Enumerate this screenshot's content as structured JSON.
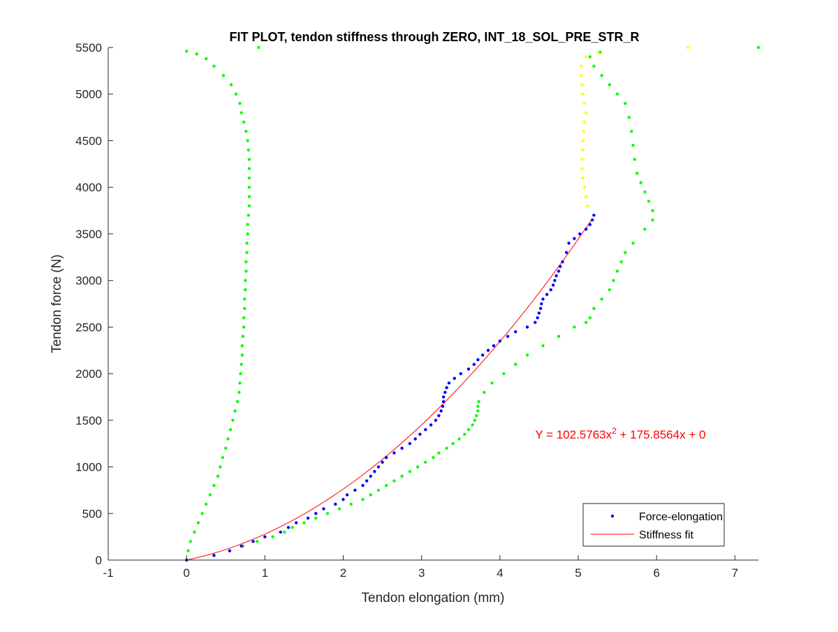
{
  "colors": {
    "force_elongation": "#0000ff",
    "stiffness_fit": "#ff0000",
    "green_series": "#00ff00",
    "yellow_series": "#ffff00",
    "equation": "#ff0000"
  },
  "chart_data": {
    "type": "scatter",
    "title": "FIT PLOT, tendon stiffness through ZERO, INT_18_SOL_PRE_STR_R",
    "xlabel": "Tendon elongation (mm)",
    "ylabel": "Tendon force (N)",
    "xlim": [
      -1,
      7.3
    ],
    "ylim": [
      0,
      5500
    ],
    "xticks": [
      "-1",
      "0",
      "1",
      "2",
      "3",
      "4",
      "5",
      "6",
      "7"
    ],
    "yticks": [
      "0",
      "500",
      "1000",
      "1500",
      "2000",
      "2500",
      "3000",
      "3500",
      "4000",
      "4500",
      "5000",
      "5500"
    ],
    "grid": false,
    "legend_position": "bottom-right",
    "annotation": {
      "prefix": "Y = 102.5763x",
      "superscript": "2",
      "suffix": " + 175.8564x + 0",
      "x": 4.45,
      "y": 1350
    },
    "fit": {
      "a": 102.5763,
      "b": 175.8564,
      "c": 0,
      "x_range": [
        0,
        5.18
      ]
    },
    "series": [
      {
        "name": "Force-elongation",
        "in_legend": true,
        "color": "blue",
        "points": [
          [
            0,
            0
          ],
          [
            0.35,
            50
          ],
          [
            0.55,
            100
          ],
          [
            0.7,
            150
          ],
          [
            0.85,
            200
          ],
          [
            1.0,
            250
          ],
          [
            1.2,
            300
          ],
          [
            1.3,
            350
          ],
          [
            1.4,
            400
          ],
          [
            1.55,
            450
          ],
          [
            1.65,
            500
          ],
          [
            1.75,
            550
          ],
          [
            1.9,
            600
          ],
          [
            2.0,
            650
          ],
          [
            2.05,
            700
          ],
          [
            2.15,
            750
          ],
          [
            2.25,
            800
          ],
          [
            2.3,
            850
          ],
          [
            2.35,
            900
          ],
          [
            2.4,
            950
          ],
          [
            2.45,
            1000
          ],
          [
            2.5,
            1050
          ],
          [
            2.55,
            1100
          ],
          [
            2.65,
            1150
          ],
          [
            2.75,
            1200
          ],
          [
            2.85,
            1250
          ],
          [
            2.92,
            1300
          ],
          [
            2.98,
            1350
          ],
          [
            3.05,
            1400
          ],
          [
            3.12,
            1450
          ],
          [
            3.18,
            1500
          ],
          [
            3.22,
            1550
          ],
          [
            3.25,
            1600
          ],
          [
            3.27,
            1650
          ],
          [
            3.28,
            1700
          ],
          [
            3.28,
            1750
          ],
          [
            3.3,
            1800
          ],
          [
            3.32,
            1850
          ],
          [
            3.35,
            1900
          ],
          [
            3.42,
            1950
          ],
          [
            3.5,
            2000
          ],
          [
            3.6,
            2050
          ],
          [
            3.67,
            2100
          ],
          [
            3.72,
            2150
          ],
          [
            3.78,
            2200
          ],
          [
            3.85,
            2250
          ],
          [
            3.92,
            2300
          ],
          [
            4.0,
            2350
          ],
          [
            4.1,
            2400
          ],
          [
            4.2,
            2450
          ],
          [
            4.35,
            2500
          ],
          [
            4.45,
            2550
          ],
          [
            4.48,
            2600
          ],
          [
            4.5,
            2650
          ],
          [
            4.52,
            2700
          ],
          [
            4.53,
            2750
          ],
          [
            4.55,
            2800
          ],
          [
            4.6,
            2850
          ],
          [
            4.65,
            2900
          ],
          [
            4.68,
            2950
          ],
          [
            4.7,
            3000
          ],
          [
            4.72,
            3050
          ],
          [
            4.75,
            3100
          ],
          [
            4.77,
            3150
          ],
          [
            4.8,
            3200
          ],
          [
            4.85,
            3300
          ],
          [
            4.88,
            3400
          ],
          [
            4.95,
            3450
          ],
          [
            5.02,
            3500
          ],
          [
            5.1,
            3550
          ],
          [
            5.15,
            3600
          ],
          [
            5.18,
            3650
          ],
          [
            5.2,
            3700
          ]
        ]
      },
      {
        "name": "Stiffness fit",
        "in_legend": true,
        "color": "red",
        "line": true
      },
      {
        "in_legend": false,
        "color": "green",
        "points": [
          [
            0,
            0
          ],
          [
            0.02,
            100
          ],
          [
            0.05,
            200
          ],
          [
            0.1,
            300
          ],
          [
            0.15,
            400
          ],
          [
            0.2,
            500
          ],
          [
            0.25,
            600
          ],
          [
            0.3,
            700
          ],
          [
            0.35,
            800
          ],
          [
            0.4,
            900
          ],
          [
            0.43,
            1000
          ],
          [
            0.46,
            1100
          ],
          [
            0.5,
            1200
          ],
          [
            0.53,
            1300
          ],
          [
            0.56,
            1400
          ],
          [
            0.59,
            1500
          ],
          [
            0.62,
            1600
          ],
          [
            0.65,
            1700
          ],
          [
            0.67,
            1800
          ],
          [
            0.68,
            1900
          ],
          [
            0.69,
            2000
          ],
          [
            0.7,
            2100
          ],
          [
            0.71,
            2200
          ],
          [
            0.71,
            2300
          ],
          [
            0.72,
            2400
          ],
          [
            0.73,
            2500
          ],
          [
            0.73,
            2600
          ],
          [
            0.74,
            2700
          ],
          [
            0.74,
            2800
          ],
          [
            0.75,
            2900
          ],
          [
            0.75,
            3000
          ],
          [
            0.76,
            3100
          ],
          [
            0.76,
            3200
          ],
          [
            0.77,
            3300
          ],
          [
            0.77,
            3400
          ],
          [
            0.78,
            3500
          ],
          [
            0.78,
            3600
          ],
          [
            0.79,
            3700
          ],
          [
            0.8,
            3800
          ],
          [
            0.8,
            3900
          ],
          [
            0.8,
            4000
          ],
          [
            0.8,
            4100
          ],
          [
            0.8,
            4200
          ],
          [
            0.8,
            4300
          ],
          [
            0.79,
            4400
          ],
          [
            0.78,
            4500
          ],
          [
            0.76,
            4600
          ],
          [
            0.73,
            4700
          ],
          [
            0.7,
            4800
          ],
          [
            0.68,
            4900
          ],
          [
            0.63,
            5000
          ],
          [
            0.57,
            5100
          ],
          [
            0.47,
            5200
          ],
          [
            0.35,
            5300
          ],
          [
            0.25,
            5380
          ],
          [
            0.13,
            5430
          ],
          [
            0,
            5460
          ],
          [
            0.92,
            5500
          ]
        ]
      },
      {
        "in_legend": false,
        "color": "green",
        "points": [
          [
            0.35,
            50
          ],
          [
            0.55,
            100
          ],
          [
            0.72,
            150
          ],
          [
            0.9,
            200
          ],
          [
            1.1,
            250
          ],
          [
            1.25,
            300
          ],
          [
            1.35,
            350
          ],
          [
            1.5,
            400
          ],
          [
            1.65,
            450
          ],
          [
            1.8,
            500
          ],
          [
            1.95,
            550
          ],
          [
            2.1,
            600
          ],
          [
            2.25,
            650
          ],
          [
            2.35,
            700
          ],
          [
            2.45,
            750
          ],
          [
            2.55,
            800
          ],
          [
            2.65,
            850
          ],
          [
            2.75,
            900
          ],
          [
            2.85,
            950
          ],
          [
            2.95,
            1000
          ],
          [
            3.05,
            1050
          ],
          [
            3.15,
            1100
          ],
          [
            3.22,
            1150
          ],
          [
            3.32,
            1200
          ],
          [
            3.4,
            1250
          ],
          [
            3.48,
            1300
          ],
          [
            3.55,
            1350
          ],
          [
            3.6,
            1400
          ],
          [
            3.65,
            1450
          ],
          [
            3.68,
            1500
          ],
          [
            3.7,
            1550
          ],
          [
            3.72,
            1600
          ],
          [
            3.72,
            1650
          ],
          [
            3.73,
            1700
          ],
          [
            3.8,
            1800
          ],
          [
            3.9,
            1900
          ],
          [
            4.05,
            2000
          ],
          [
            4.2,
            2100
          ],
          [
            4.35,
            2200
          ],
          [
            4.55,
            2300
          ],
          [
            4.75,
            2400
          ],
          [
            4.95,
            2500
          ],
          [
            5.1,
            2550
          ],
          [
            5.15,
            2600
          ],
          [
            5.2,
            2700
          ],
          [
            5.3,
            2800
          ],
          [
            5.4,
            2900
          ],
          [
            5.45,
            3000
          ],
          [
            5.5,
            3100
          ],
          [
            5.55,
            3200
          ],
          [
            5.6,
            3300
          ],
          [
            5.7,
            3400
          ],
          [
            5.85,
            3550
          ],
          [
            5.95,
            3650
          ],
          [
            5.95,
            3750
          ],
          [
            5.9,
            3850
          ],
          [
            5.85,
            3950
          ],
          [
            5.8,
            4050
          ],
          [
            5.75,
            4150
          ],
          [
            5.72,
            4300
          ],
          [
            5.7,
            4450
          ],
          [
            5.68,
            4600
          ],
          [
            5.65,
            4750
          ],
          [
            5.6,
            4900
          ],
          [
            5.5,
            5000
          ],
          [
            5.4,
            5100
          ],
          [
            5.3,
            5200
          ],
          [
            5.2,
            5300
          ],
          [
            5.15,
            5400
          ],
          [
            5.28,
            5450
          ],
          [
            7.3,
            5500
          ]
        ]
      },
      {
        "in_legend": false,
        "color": "yellow",
        "points": [
          [
            5.2,
            3700
          ],
          [
            5.12,
            3800
          ],
          [
            5.1,
            3900
          ],
          [
            5.08,
            4000
          ],
          [
            5.06,
            4100
          ],
          [
            5.05,
            4200
          ],
          [
            5.05,
            4300
          ],
          [
            5.06,
            4400
          ],
          [
            5.06,
            4500
          ],
          [
            5.07,
            4600
          ],
          [
            5.08,
            4700
          ],
          [
            5.1,
            4800
          ],
          [
            5.08,
            4900
          ],
          [
            5.06,
            5000
          ],
          [
            5.05,
            5100
          ],
          [
            5.04,
            5200
          ],
          [
            5.04,
            5300
          ],
          [
            5.1,
            5400
          ],
          [
            5.25,
            5450
          ],
          [
            6.4,
            5500
          ]
        ]
      }
    ]
  }
}
